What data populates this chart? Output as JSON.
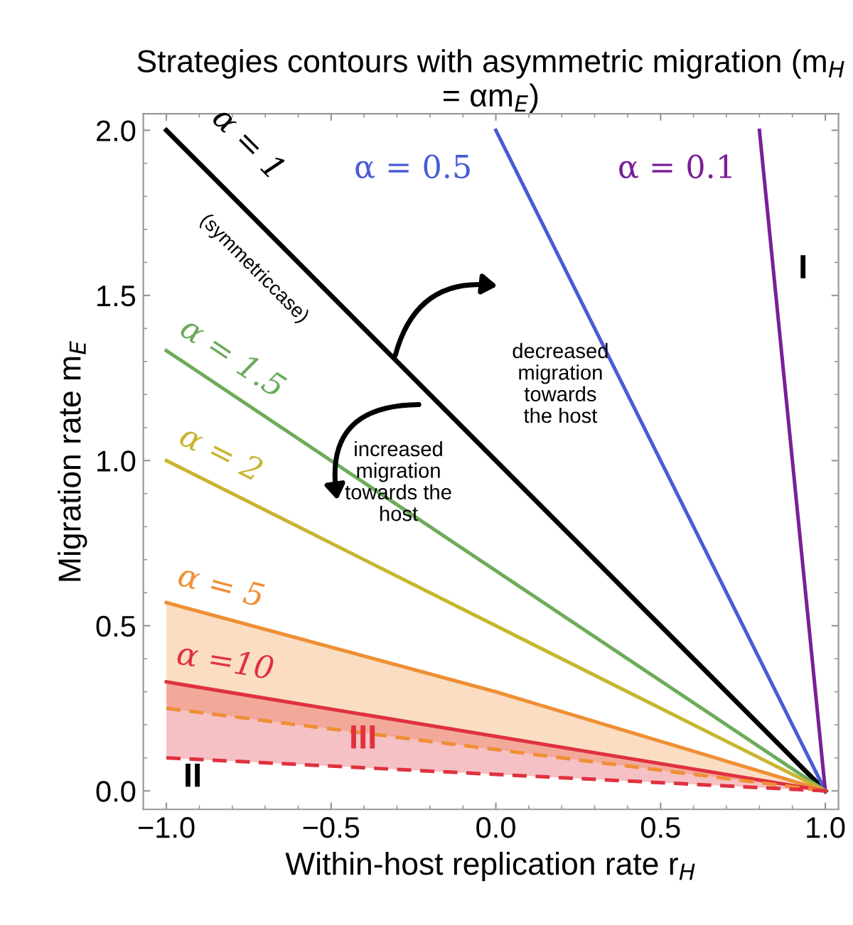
{
  "chart_data": {
    "type": "line",
    "title": "Strategies contours with asymmetric migration (m$_{H}$ = αm$_{E}$)",
    "xlabel": "Within-host replication rate r$_{H}$",
    "ylabel": "Migration rate m$_{E}$",
    "xlim": [
      -1.07,
      1.04
    ],
    "ylim": [
      -0.056,
      2.05
    ],
    "xticks": [
      {
        "value": -1,
        "label": "−1.0"
      },
      {
        "value": -0.5,
        "label": "−0.5"
      },
      {
        "value": 0,
        "label": "0.0"
      },
      {
        "value": 0.5,
        "label": "0.5"
      },
      {
        "value": 1,
        "label": "1.0"
      }
    ],
    "yticks": [
      {
        "value": 0,
        "label": "0.0"
      },
      {
        "value": 0.5,
        "label": "0.5"
      },
      {
        "value": 1,
        "label": "1.0"
      },
      {
        "value": 1.5,
        "label": "1.5"
      },
      {
        "value": 2,
        "label": "2.0"
      }
    ],
    "grid": false,
    "legend": false,
    "marker": "none",
    "series": [
      {
        "name": "α = 1",
        "color": "#000000",
        "x": [
          -1,
          1
        ],
        "values": [
          2,
          0
        ]
      },
      {
        "name": "α = 0.5",
        "color": "#4a5bd4",
        "x": [
          0,
          1
        ],
        "values": [
          2,
          0
        ]
      },
      {
        "name": "α = 0.1",
        "color": "#7a1f98",
        "x": [
          0.8,
          1
        ],
        "values": [
          2,
          0
        ]
      },
      {
        "name": "α = 1.5",
        "color": "#6cac5c",
        "x": [
          -1,
          1
        ],
        "values": [
          1.333,
          0
        ]
      },
      {
        "name": "α = 2",
        "color": "#c9b530",
        "x": [
          -1,
          1
        ],
        "values": [
          1,
          0
        ]
      },
      {
        "name": "α = 5",
        "color": "#ef8f35",
        "x": [
          -1,
          0,
          1
        ],
        "values": [
          0.57,
          0.3,
          0
        ],
        "lower": [
          0.25,
          0.125,
          0
        ],
        "upper": [
          0.57,
          0.3,
          0
        ]
      },
      {
        "name": "α =10",
        "color": "#e0313f",
        "x": [
          -1,
          0,
          1
        ],
        "values": [
          0.33,
          0.165,
          0
        ],
        "lower": [
          0.1,
          0.05,
          0
        ],
        "upper": [
          0.33,
          0.165,
          0
        ]
      },
      {
        "color": "#ef8f35",
        "x": [
          -1,
          0,
          1
        ],
        "values": [
          0.25,
          0.125,
          0
        ],
        "line_style": "dashed"
      },
      {
        "color": "#e0313f",
        "x": [
          -1,
          0,
          1
        ],
        "values": [
          0.1,
          0.05,
          0
        ],
        "line_style": "dashed"
      }
    ],
    "annotations": [
      "(symmetriccase)",
      "decreased\nmigration\ntowards\nthe host",
      "increased\nmigration\ntowards the\nhost",
      "I",
      "II",
      "III"
    ]
  }
}
